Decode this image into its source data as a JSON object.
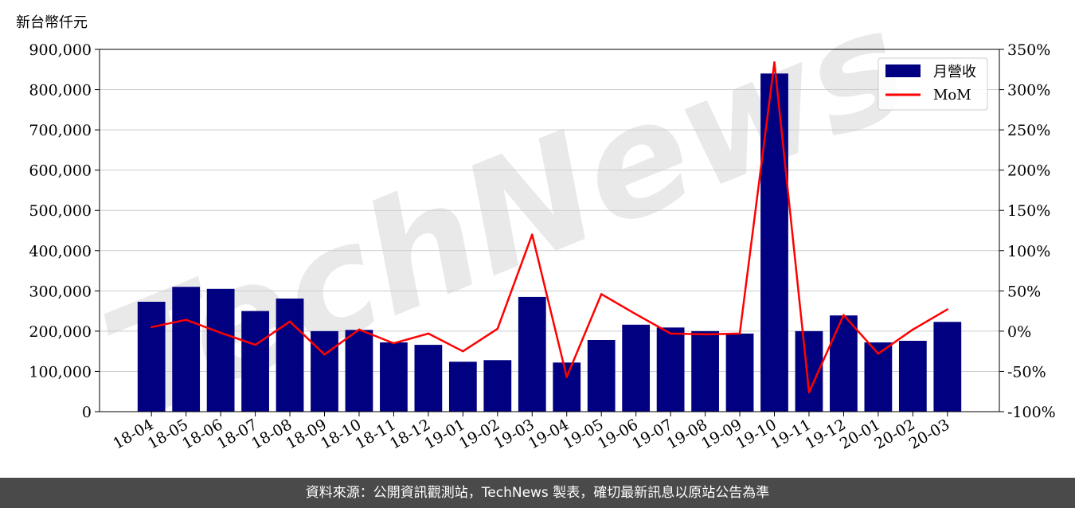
{
  "unit_label": "新台幣仟元",
  "watermark": "TechNews",
  "footer": "資料來源：公開資訊觀測站，TechNews 製表，確切最新訊息以原站公告為準",
  "colors": {
    "bar": "#000080",
    "line": "#ff0000",
    "grid": "#cccccc",
    "footer_bg": "#4a4a4a"
  },
  "chart_data": {
    "type": "bar",
    "categories": [
      "18-04",
      "18-05",
      "18-06",
      "18-07",
      "18-08",
      "18-09",
      "18-10",
      "18-11",
      "18-12",
      "19-01",
      "19-02",
      "19-03",
      "19-04",
      "19-05",
      "19-06",
      "19-07",
      "19-08",
      "19-09",
      "19-10",
      "19-11",
      "19-12",
      "20-01",
      "20-02",
      "20-03"
    ],
    "series": [
      {
        "name": "月營收",
        "type": "bar",
        "axis": "left",
        "values": [
          273000,
          310000,
          305000,
          250000,
          281000,
          200000,
          203000,
          172000,
          166000,
          124000,
          128000,
          285000,
          122000,
          178000,
          216000,
          209000,
          200000,
          194000,
          840000,
          200000,
          239000,
          172000,
          176000,
          223000
        ]
      },
      {
        "name": "MoM",
        "type": "line",
        "axis": "right",
        "unit": "%",
        "values": [
          5,
          14,
          -2,
          -17,
          12,
          -29,
          2,
          -15,
          -3,
          -25,
          3,
          120,
          -57,
          46,
          21,
          -3,
          -4,
          -3,
          334,
          -76,
          20,
          -28,
          2,
          27
        ]
      }
    ],
    "ylim": [
      0,
      900000
    ],
    "yticks": [
      "0",
      "100,000",
      "200,000",
      "300,000",
      "400,000",
      "500,000",
      "600,000",
      "700,000",
      "800,000",
      "900,000"
    ],
    "y2lim": [
      -100,
      350
    ],
    "y2ticks": [
      "-100%",
      "-50%",
      "0%",
      "50%",
      "100%",
      "150%",
      "200%",
      "250%",
      "300%",
      "350%"
    ],
    "grid": true,
    "legend_position": "top-right"
  }
}
